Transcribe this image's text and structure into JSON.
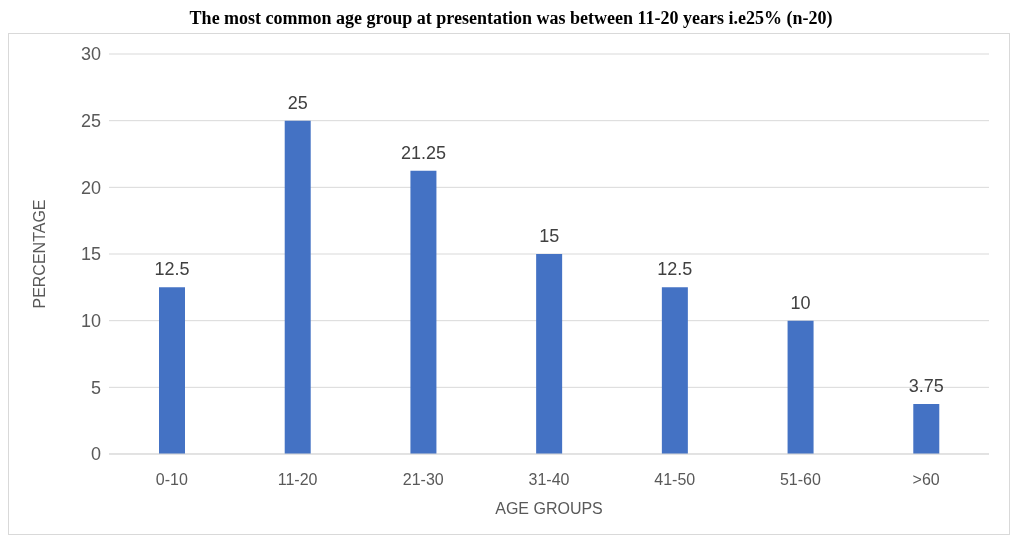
{
  "chart_data": {
    "type": "bar",
    "title": "The most common age group at presentation was between 11-20 years i.e25% (n-20)",
    "xlabel": "AGE GROUPS",
    "ylabel": "PERCENTAGE",
    "categories": [
      "0-10",
      "11-20",
      "21-30",
      "31-40",
      "41-50",
      "51-60",
      ">60"
    ],
    "values": [
      12.5,
      25,
      21.25,
      15,
      12.5,
      10,
      3.75
    ],
    "color": "#4472c4",
    "ylim": [
      0,
      30
    ],
    "yticks": [
      0,
      5,
      10,
      15,
      20,
      25,
      30
    ],
    "grid": "y",
    "data_labels": true
  }
}
